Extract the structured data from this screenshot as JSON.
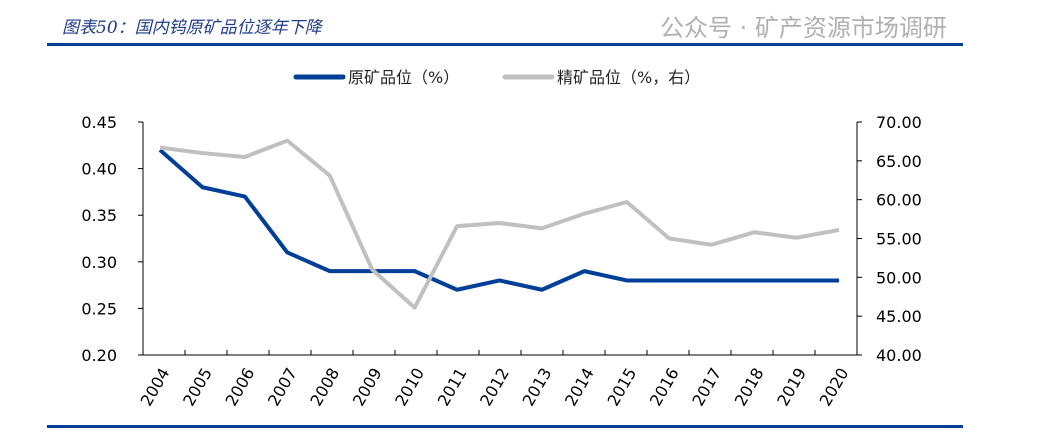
{
  "title": "图表50：国内钨原矿品位逐年下降",
  "watermark": "公众号 · 矿产资源市场调研",
  "chart_data": {
    "type": "line",
    "title": "图表50：国内钨原矿品位逐年下降",
    "categories": [
      "2004",
      "2005",
      "2006",
      "2007",
      "2008",
      "2009",
      "2010",
      "2011",
      "2012",
      "2013",
      "2014",
      "2015",
      "2016",
      "2017",
      "2018",
      "2019",
      "2020"
    ],
    "series": [
      {
        "name": "原矿品位（%）",
        "axis": "left",
        "color": "#003f98",
        "values": [
          0.42,
          0.38,
          0.37,
          0.31,
          0.29,
          0.29,
          0.29,
          0.27,
          0.28,
          0.27,
          0.29,
          0.28,
          0.28,
          0.28,
          0.28,
          0.28,
          0.28
        ]
      },
      {
        "name": "精矿品位（%，右）",
        "axis": "right",
        "color": "#c0c0c0",
        "values": [
          66.7,
          66.0,
          65.5,
          67.6,
          63.1,
          51.0,
          46.1,
          56.6,
          57.0,
          56.3,
          58.2,
          59.7,
          55.0,
          54.2,
          55.8,
          55.1,
          56.1
        ]
      }
    ],
    "y_left": {
      "lim": [
        0.2,
        0.45
      ],
      "ticks": [
        "0.20",
        "0.25",
        "0.30",
        "0.35",
        "0.40",
        "0.45"
      ]
    },
    "y_right": {
      "lim": [
        40,
        70
      ],
      "ticks": [
        "40.00",
        "45.00",
        "50.00",
        "55.00",
        "60.00",
        "65.00",
        "70.00"
      ]
    },
    "legend": "top-center",
    "grid": false
  }
}
